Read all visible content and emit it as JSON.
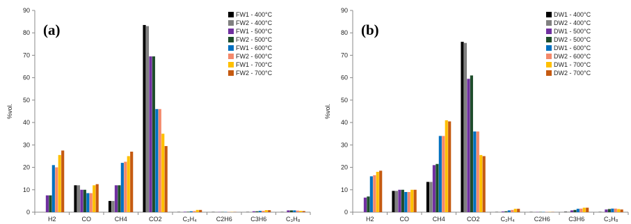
{
  "chart_data": [
    {
      "type": "bar",
      "panel_label": "(a)",
      "ylabel": "%vol.",
      "ylim": [
        0,
        90
      ],
      "yticks": [
        0,
        10,
        20,
        30,
        40,
        50,
        60,
        70,
        80,
        90
      ],
      "grid": false,
      "legend_position": "top-right",
      "categories": [
        "H2",
        "CO",
        "CH4",
        "CO2",
        "C₂H₄",
        "C2H6",
        "C3H6",
        "C₃H₈"
      ],
      "series": [
        {
          "name": "FW1 - 400°C",
          "color": "#000000",
          "values": [
            0,
            12,
            5,
            83.5,
            0.1,
            0.1,
            0.1,
            0.1
          ]
        },
        {
          "name": "FW2 - 400°C",
          "color": "#808080",
          "values": [
            0,
            12,
            5,
            83,
            0.1,
            0.1,
            0.1,
            0.1
          ]
        },
        {
          "name": "FW1 - 500°C",
          "color": "#7030a0",
          "values": [
            7.5,
            10,
            12,
            69.5,
            0.2,
            0.1,
            0.4,
            0.8
          ]
        },
        {
          "name": "FW2 - 500°C",
          "color": "#1e4d2b",
          "values": [
            7.5,
            10,
            12,
            69.5,
            0.2,
            0.1,
            0.4,
            0.8
          ]
        },
        {
          "name": "FW1 - 600°C",
          "color": "#0070c0",
          "values": [
            21,
            8.5,
            22,
            46,
            0.4,
            0.1,
            0.6,
            0.8
          ]
        },
        {
          "name": "FW2 - 600°C",
          "color": "#f4896b",
          "values": [
            20,
            8.5,
            22.5,
            46,
            0.5,
            0.1,
            0.6,
            0.7
          ]
        },
        {
          "name": "FW1 - 700°C",
          "color": "#ffc000",
          "values": [
            25.5,
            12,
            25,
            35,
            1,
            0.1,
            0.9,
            0.6
          ]
        },
        {
          "name": "FW2 - 700°C",
          "color": "#c55a11",
          "values": [
            27.5,
            12.5,
            27,
            29.5,
            1,
            0.1,
            0.9,
            0.5
          ]
        }
      ]
    },
    {
      "type": "bar",
      "panel_label": "(b)",
      "ylabel": "%vol.",
      "ylim": [
        0,
        90
      ],
      "yticks": [
        0,
        10,
        20,
        30,
        40,
        50,
        60,
        70,
        80,
        90
      ],
      "grid": false,
      "legend_position": "top-right",
      "categories": [
        "H2",
        "CO",
        "CH4",
        "CO2",
        "C₂H₄",
        "C2H6",
        "C3H6",
        "C₃H₈"
      ],
      "series": [
        {
          "name": "DW1 - 400°C",
          "color": "#000000",
          "values": [
            0,
            9.5,
            13.5,
            76,
            0.1,
            0.1,
            0.2,
            0.1
          ]
        },
        {
          "name": "DW2 - 400°C",
          "color": "#808080",
          "values": [
            0,
            9.5,
            13.5,
            75.5,
            0.1,
            0.1,
            0.2,
            0.1
          ]
        },
        {
          "name": "DW1 - 500°C",
          "color": "#7030a0",
          "values": [
            6.5,
            10,
            21,
            59.5,
            0.3,
            0.1,
            0.8,
            1.2
          ]
        },
        {
          "name": "DW2 - 500°C",
          "color": "#1e4d2b",
          "values": [
            7,
            10,
            21.5,
            61,
            0.4,
            0.1,
            1,
            1.4
          ]
        },
        {
          "name": "DW1 - 600°C",
          "color": "#0070c0",
          "values": [
            16,
            9,
            34,
            36,
            0.8,
            0.1,
            1.5,
            1.6
          ]
        },
        {
          "name": "DW2 - 600°C",
          "color": "#f4896b",
          "values": [
            16.5,
            9,
            34,
            36,
            1,
            0.1,
            1.6,
            1.6
          ]
        },
        {
          "name": "DW1 - 700°C",
          "color": "#ffc000",
          "values": [
            18,
            10,
            41,
            25.5,
            1.5,
            0.1,
            2,
            1.4
          ]
        },
        {
          "name": "DW2 - 700°C",
          "color": "#c55a11",
          "values": [
            18.5,
            10,
            40.5,
            25,
            1.5,
            0.1,
            2,
            1.2
          ]
        }
      ]
    }
  ]
}
